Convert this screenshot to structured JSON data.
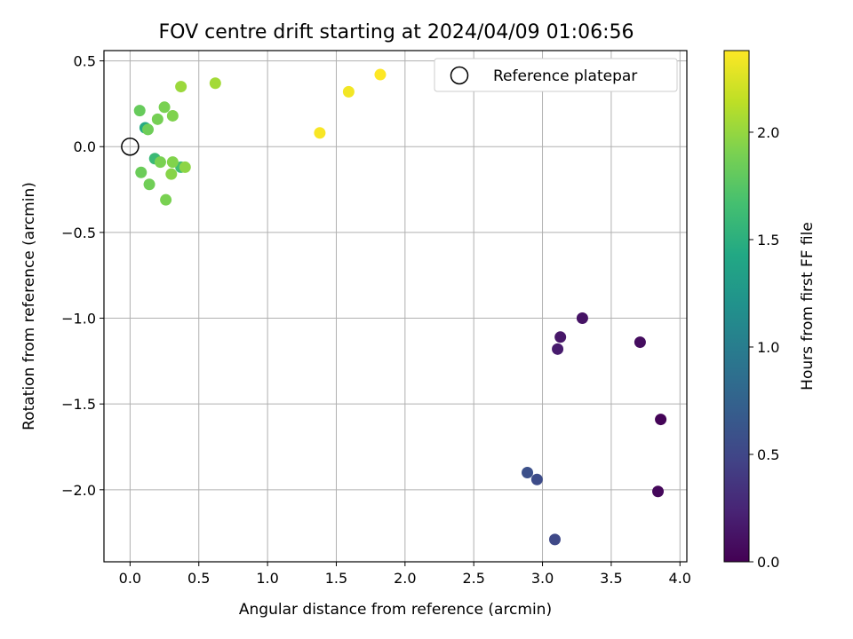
{
  "chart_data": {
    "type": "scatter",
    "title": "FOV centre drift starting at 2024/04/09 01:06:56",
    "xlabel": "Angular distance from reference (arcmin)",
    "ylabel": "Rotation from reference (arcmin)",
    "xlim": [
      -0.19,
      4.05
    ],
    "ylim": [
      -2.42,
      0.56
    ],
    "x_ticks": [
      0.0,
      0.5,
      1.0,
      1.5,
      2.0,
      2.5,
      3.0,
      3.5,
      4.0
    ],
    "x_tick_labels": [
      "0.0",
      "0.5",
      "1.0",
      "1.5",
      "2.0",
      "2.5",
      "3.0",
      "3.5",
      "4.0"
    ],
    "y_ticks": [
      0.5,
      0.0,
      -0.5,
      -1.0,
      -1.5,
      -2.0
    ],
    "y_tick_labels": [
      "0.5",
      "0.0",
      "−0.5",
      "−1.0",
      "−1.5",
      "−2.0"
    ],
    "grid": true,
    "legend": {
      "position": "top-right",
      "entries": [
        "Reference platepar"
      ]
    },
    "reference_point": {
      "x": 0.0,
      "y": 0.0,
      "label": "Reference platepar"
    },
    "colorbar": {
      "label": "Hours from first FF file",
      "range": [
        0.0,
        2.38
      ],
      "ticks": [
        0.0,
        0.5,
        1.0,
        1.5,
        2.0
      ],
      "tick_labels": [
        "0.0",
        "0.5",
        "1.0",
        "1.5",
        "2.0"
      ],
      "colormap": "viridis"
    },
    "points": [
      {
        "x": 3.86,
        "y": -1.59,
        "hours": 0.02
      },
      {
        "x": 3.84,
        "y": -2.01,
        "hours": 0.05
      },
      {
        "x": 3.71,
        "y": -1.14,
        "hours": 0.08
      },
      {
        "x": 3.29,
        "y": -1.0,
        "hours": 0.12
      },
      {
        "x": 3.13,
        "y": -1.11,
        "hours": 0.15
      },
      {
        "x": 3.11,
        "y": -1.18,
        "hours": 0.18
      },
      {
        "x": 3.09,
        "y": -2.29,
        "hours": 0.52
      },
      {
        "x": 2.96,
        "y": -1.94,
        "hours": 0.55
      },
      {
        "x": 2.89,
        "y": -1.9,
        "hours": 0.58
      },
      {
        "x": 0.11,
        "y": 0.11,
        "hours": 1.45
      },
      {
        "x": 0.18,
        "y": -0.07,
        "hours": 1.6
      },
      {
        "x": 0.37,
        "y": -0.12,
        "hours": 1.65
      },
      {
        "x": 0.07,
        "y": 0.21,
        "hours": 1.82
      },
      {
        "x": 0.13,
        "y": 0.1,
        "hours": 1.85
      },
      {
        "x": 0.2,
        "y": 0.16,
        "hours": 1.88
      },
      {
        "x": 0.25,
        "y": 0.23,
        "hours": 1.9
      },
      {
        "x": 0.31,
        "y": 0.18,
        "hours": 1.92
      },
      {
        "x": 0.08,
        "y": -0.15,
        "hours": 1.84
      },
      {
        "x": 0.14,
        "y": -0.22,
        "hours": 1.86
      },
      {
        "x": 0.22,
        "y": -0.09,
        "hours": 1.9
      },
      {
        "x": 0.31,
        "y": -0.09,
        "hours": 1.93
      },
      {
        "x": 0.3,
        "y": -0.16,
        "hours": 1.95
      },
      {
        "x": 0.4,
        "y": -0.12,
        "hours": 1.97
      },
      {
        "x": 0.26,
        "y": -0.31,
        "hours": 1.9
      },
      {
        "x": 0.37,
        "y": 0.35,
        "hours": 2.02
      },
      {
        "x": 0.62,
        "y": 0.37,
        "hours": 2.05
      },
      {
        "x": 1.38,
        "y": 0.08,
        "hours": 2.36
      },
      {
        "x": 1.59,
        "y": 0.32,
        "hours": 2.34
      },
      {
        "x": 1.82,
        "y": 0.42,
        "hours": 2.38
      }
    ]
  }
}
